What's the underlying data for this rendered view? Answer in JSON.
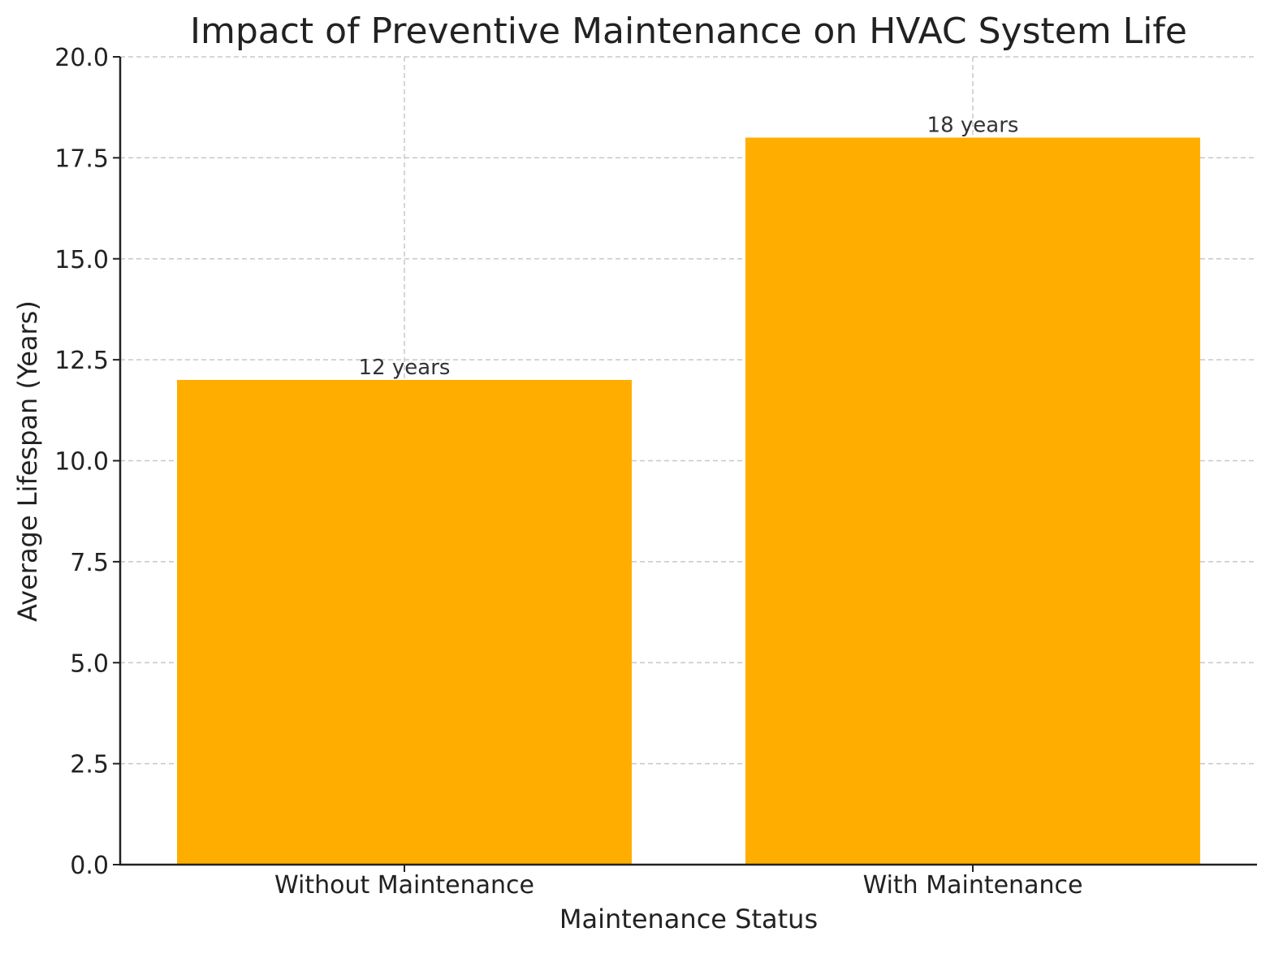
{
  "chart_data": {
    "type": "bar",
    "title": "Impact of Preventive Maintenance on HVAC System Life",
    "xlabel": "Maintenance Status",
    "ylabel": "Average Lifespan (Years)",
    "categories": [
      "Without Maintenance",
      "With Maintenance"
    ],
    "values": [
      12,
      18
    ],
    "data_labels": [
      "12 years",
      "18 years"
    ],
    "ylim": [
      0,
      20
    ],
    "yticks": [
      "0.0",
      "2.5",
      "5.0",
      "7.5",
      "10.0",
      "12.5",
      "15.0",
      "17.5",
      "20.0"
    ],
    "grid": true,
    "legend": "none",
    "colors": {
      "bar": "#FFAE00",
      "grid": "#c8c8c8",
      "axis": "#222222",
      "text": "#222222"
    }
  }
}
